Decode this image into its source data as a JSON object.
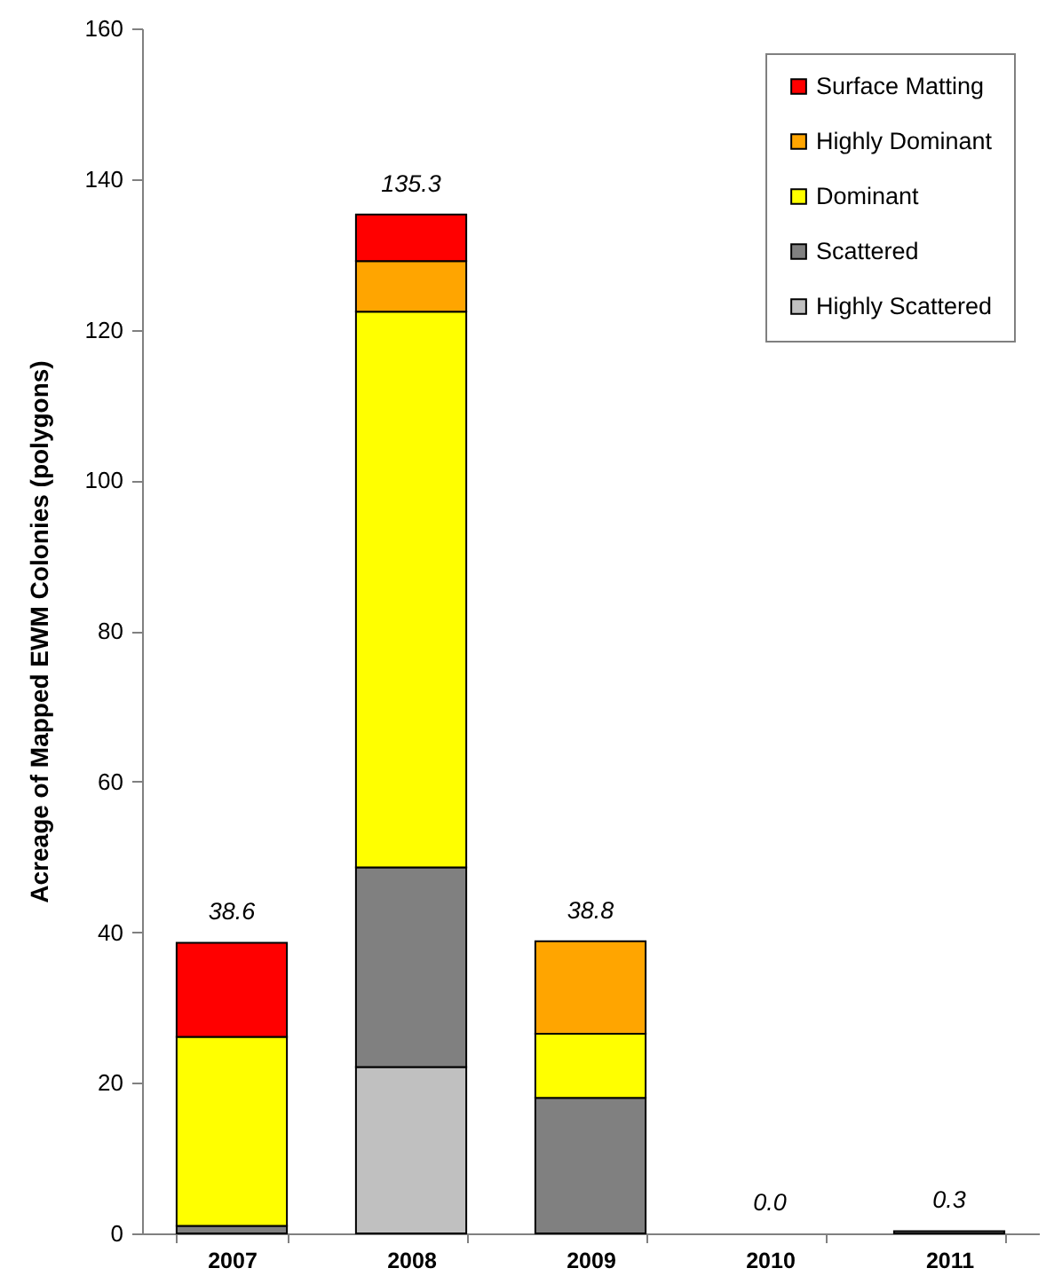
{
  "chart_data": {
    "type": "bar",
    "ylabel": "Acreage of Mapped EWM Colonies (polygons)",
    "categories": [
      "2007",
      "2008",
      "2009",
      "2010",
      "2011"
    ],
    "stacked": true,
    "series": [
      {
        "name": "Highly Scattered",
        "color": "#c0c0c0",
        "values": [
          null,
          22.1,
          null,
          null,
          null
        ]
      },
      {
        "name": "Scattered",
        "color": "#808080",
        "values": [
          1.0,
          26.5,
          18.0,
          null,
          0.3
        ]
      },
      {
        "name": "Dominant",
        "color": "#ffff00",
        "values": [
          25.1,
          73.8,
          8.5,
          null,
          null
        ]
      },
      {
        "name": "Highly Dominant",
        "color": "#ffa500",
        "values": [
          null,
          6.7,
          12.3,
          null,
          null
        ]
      },
      {
        "name": "Surface Matting",
        "color": "#ff0000",
        "values": [
          12.5,
          6.2,
          null,
          null,
          null
        ]
      }
    ],
    "totals": [
      "38.6",
      "135.3",
      "38.8",
      "0.0",
      "0.3"
    ],
    "ylim": [
      0,
      160
    ],
    "yticks": [
      0,
      20,
      40,
      60,
      80,
      100,
      120,
      140,
      160
    ],
    "grid": false,
    "legend": "top right"
  }
}
